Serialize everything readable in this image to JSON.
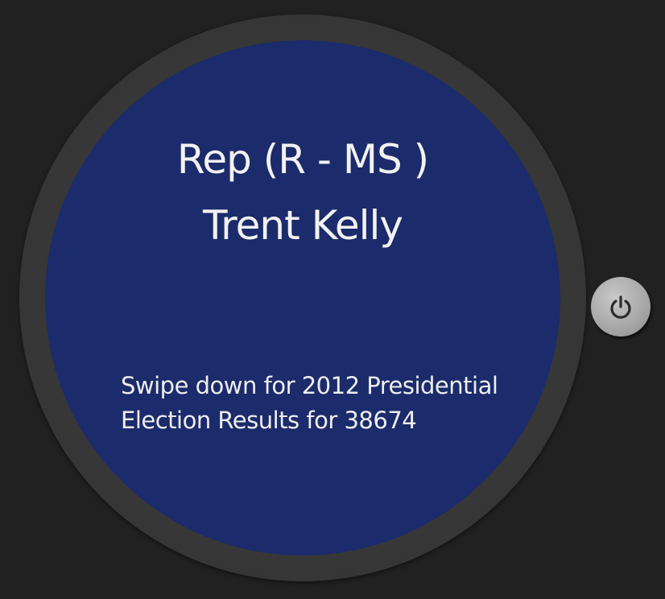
{
  "watch": {
    "title_line1": "Rep (R - MS )",
    "title_line2": "Trent Kelly",
    "hint": "Swipe down for 2012 Presidential Election Results for 38674"
  },
  "hardware": {
    "power_icon": "power-icon"
  },
  "colors": {
    "background": "#212121",
    "bezel": "#353535",
    "screen": "#1b2b6b",
    "text": "#f2f2f2",
    "button": "#a9a9a9"
  }
}
